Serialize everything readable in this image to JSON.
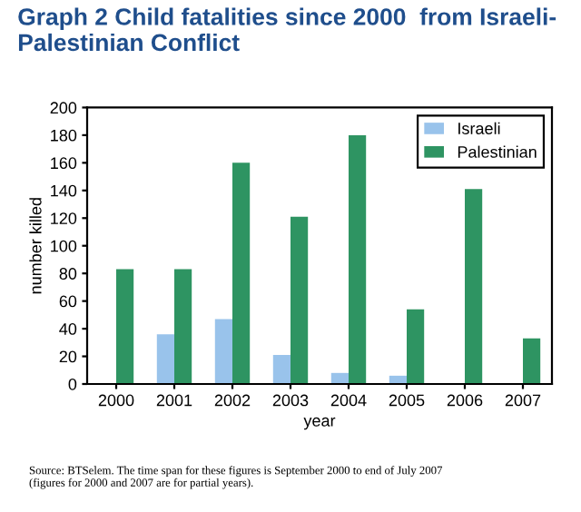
{
  "chart_data": {
    "type": "bar",
    "title": "Graph 2 Child fatalities since 2000  from Israeli-\nPalestinian Conflict",
    "categories": [
      "2000",
      "2001",
      "2002",
      "2003",
      "2004",
      "2005",
      "2006",
      "2007"
    ],
    "series": [
      {
        "name": "Israeli",
        "color": "#99c3eb",
        "values": [
          0,
          36,
          47,
          21,
          8,
          6,
          0,
          0
        ]
      },
      {
        "name": "Palestinian",
        "color": "#2e9462",
        "values": [
          83,
          83,
          160,
          121,
          180,
          54,
          141,
          33
        ]
      }
    ],
    "xlabel": "year",
    "ylabel": "number killed",
    "ylim": [
      0,
      200
    ],
    "yticks": [
      0,
      20,
      40,
      60,
      80,
      100,
      120,
      140,
      160,
      180,
      200
    ],
    "grid": false,
    "legend": "top right",
    "annotations": [
      "Source: BTSelem. The time span for these figures is September 2000 to end of July 2007\n(figures for 2000 and 2007 are for partial years)."
    ]
  }
}
